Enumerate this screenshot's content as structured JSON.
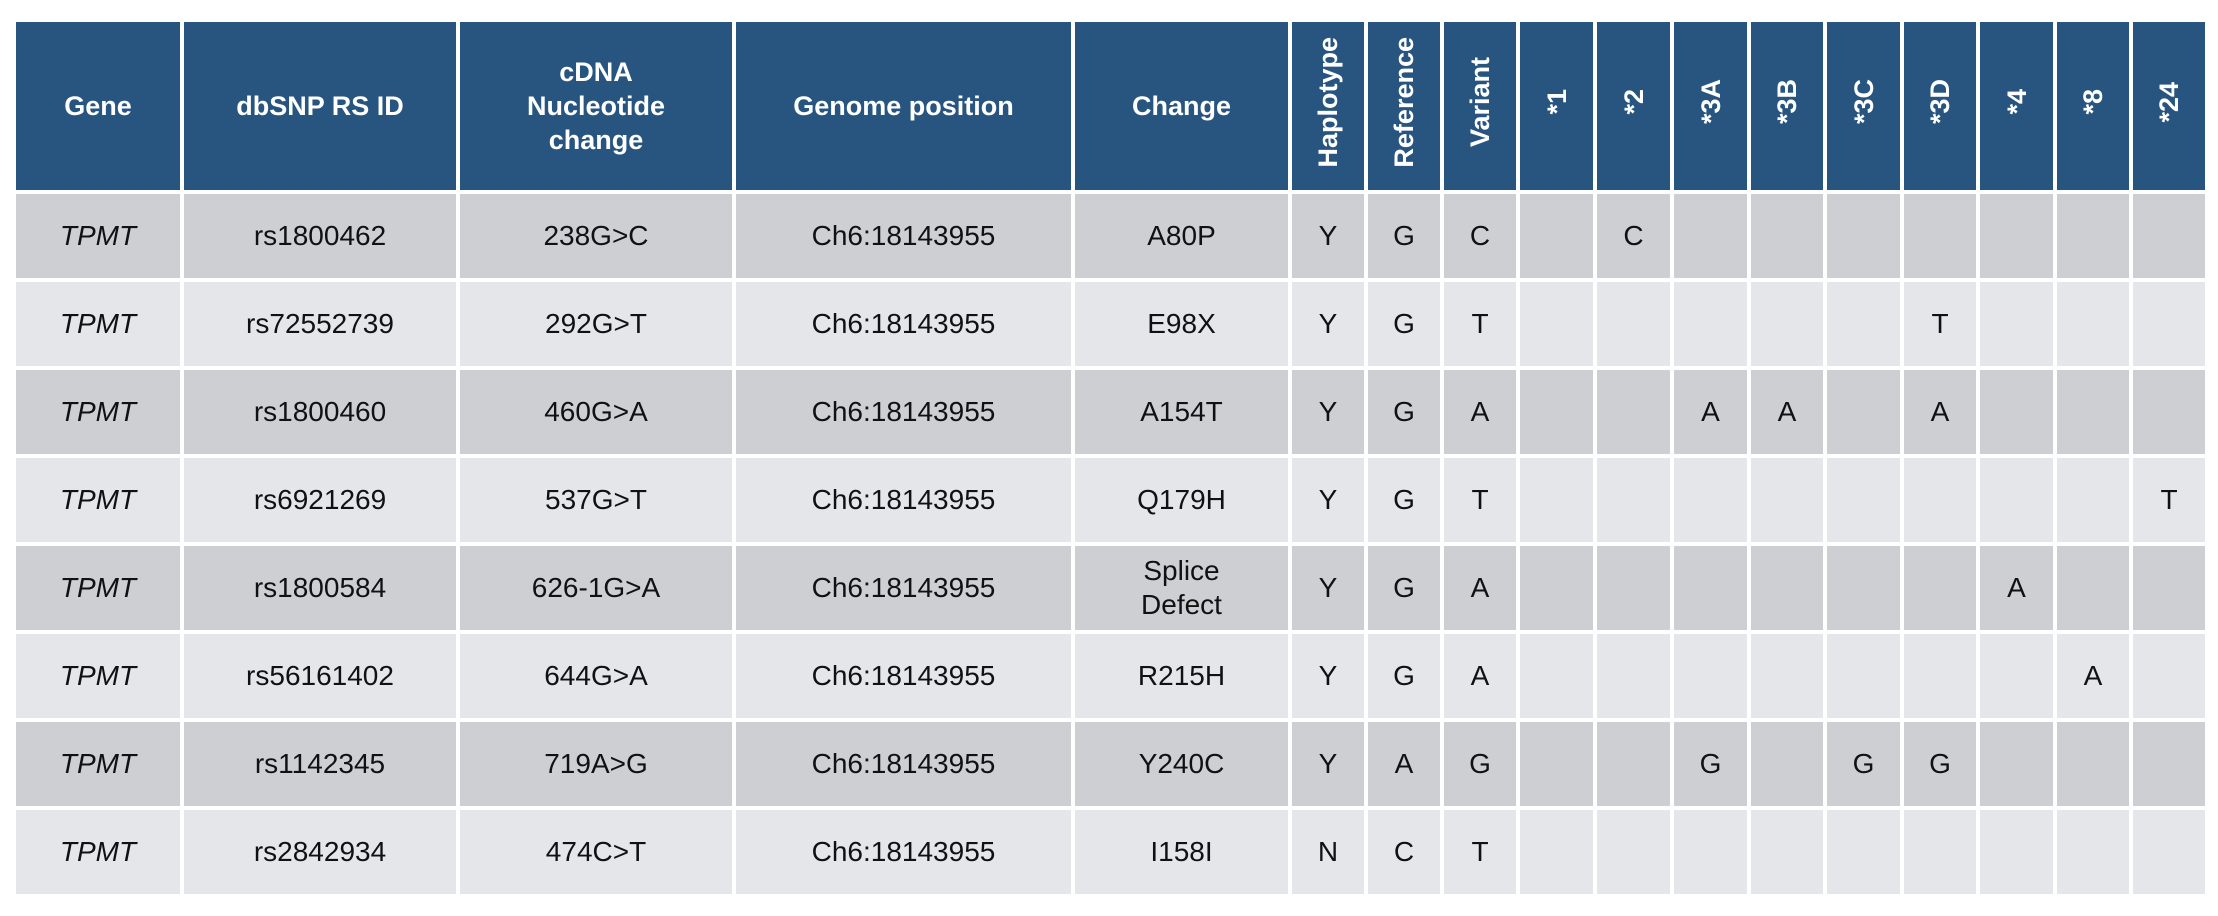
{
  "table": {
    "headers": {
      "gene": "Gene",
      "dbsnp": "dbSNP RS ID",
      "cdna_line1": "cDNA",
      "cdna_line2": "Nucleotide",
      "cdna_line3": "change",
      "genome": "Genome position",
      "change": "Change",
      "haplotype": "Haplotype",
      "reference": "Reference",
      "variant": "Variant",
      "star_alleles": [
        "*1",
        "*2",
        "*3A",
        "*3B",
        "*3C",
        "*3D",
        "*4",
        "*8",
        "*24"
      ]
    },
    "rows": [
      {
        "gene": "TPMT",
        "rsid": "rs1800462",
        "cdna": "238G>C",
        "genome": "Ch6:18143955",
        "change_l1": "A80P",
        "change_l2": "",
        "haplotype": "Y",
        "reference": "G",
        "variant": "C",
        "alleles": [
          "",
          "C",
          "",
          "",
          "",
          "",
          "",
          "",
          ""
        ]
      },
      {
        "gene": "TPMT",
        "rsid": "rs72552739",
        "cdna": "292G>T",
        "genome": "Ch6:18143955",
        "change_l1": "E98X",
        "change_l2": "",
        "haplotype": "Y",
        "reference": "G",
        "variant": "T",
        "alleles": [
          "",
          "",
          "",
          "",
          "",
          "T",
          "",
          "",
          ""
        ]
      },
      {
        "gene": "TPMT",
        "rsid": "rs1800460",
        "cdna": "460G>A",
        "genome": "Ch6:18143955",
        "change_l1": "A154T",
        "change_l2": "",
        "haplotype": "Y",
        "reference": "G",
        "variant": "A",
        "alleles": [
          "",
          "",
          "A",
          "A",
          "",
          "A",
          "",
          "",
          ""
        ]
      },
      {
        "gene": "TPMT",
        "rsid": "rs6921269",
        "cdna": "537G>T",
        "genome": "Ch6:18143955",
        "change_l1": "Q179H",
        "change_l2": "",
        "haplotype": "Y",
        "reference": "G",
        "variant": "T",
        "alleles": [
          "",
          "",
          "",
          "",
          "",
          "",
          "",
          "",
          "T"
        ]
      },
      {
        "gene": "TPMT",
        "rsid": "rs1800584",
        "cdna": "626-1G>A",
        "genome": "Ch6:18143955",
        "change_l1": "Splice",
        "change_l2": "Defect",
        "haplotype": "Y",
        "reference": "G",
        "variant": "A",
        "alleles": [
          "",
          "",
          "",
          "",
          "",
          "",
          "A",
          "",
          ""
        ]
      },
      {
        "gene": "TPMT",
        "rsid": "rs56161402",
        "cdna": "644G>A",
        "genome": "Ch6:18143955",
        "change_l1": "R215H",
        "change_l2": "",
        "haplotype": "Y",
        "reference": "G",
        "variant": "A",
        "alleles": [
          "",
          "",
          "",
          "",
          "",
          "",
          "",
          "A",
          ""
        ]
      },
      {
        "gene": "TPMT",
        "rsid": "rs1142345",
        "cdna": "719A>G",
        "genome": "Ch6:18143955",
        "change_l1": "Y240C",
        "change_l2": "",
        "haplotype": "Y",
        "reference": "A",
        "variant": "G",
        "alleles": [
          "",
          "",
          "G",
          "",
          "G",
          "G",
          "",
          "",
          ""
        ]
      },
      {
        "gene": "TPMT",
        "rsid": "rs2842934",
        "cdna": "474C>T",
        "genome": "Ch6:18143955",
        "change_l1": "I158I",
        "change_l2": "",
        "haplotype": "N",
        "reference": "C",
        "variant": "T",
        "alleles": [
          "",
          "",
          "",
          "",
          "",
          "",
          "",
          "",
          ""
        ]
      }
    ]
  },
  "colors": {
    "header_bg": "#275580",
    "header_text": "#ffffff",
    "row_odd_bg": "#cdcfd3",
    "row_even_bg": "#e5e6e9",
    "grid_lines": "#ffffff"
  }
}
